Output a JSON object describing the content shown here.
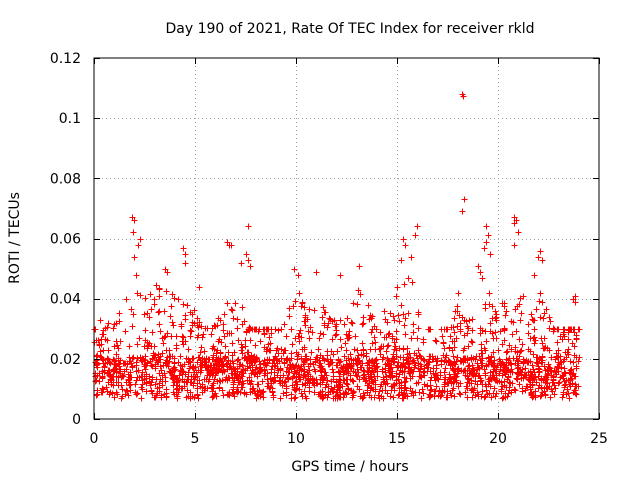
{
  "chart_data": {
    "type": "scatter",
    "title": "Day 190 of 2021, Rate Of TEC Index for receiver rkld",
    "xlabel": "GPS time / hours",
    "ylabel": "ROTI / TECUs",
    "xlim": [
      0,
      25
    ],
    "ylim": [
      0,
      0.12
    ],
    "x_ticks": [
      0,
      5,
      10,
      15,
      20,
      25
    ],
    "x_tick_labels": [
      "0",
      "5",
      "10",
      "15",
      "20",
      "25"
    ],
    "y_ticks": [
      0,
      0.02,
      0.04,
      0.06,
      0.08,
      0.1,
      0.12
    ],
    "y_tick_labels": [
      "0",
      "0.02",
      "0.04",
      "0.06",
      "0.08",
      "0.1",
      "0.12"
    ],
    "grid": true,
    "marker": "+",
    "color": "#ff0000",
    "series": [
      {
        "name": "ROTI",
        "x_range": [
          0,
          24
        ],
        "typical_range": [
          0.005,
          0.03
        ],
        "envelope": [
          {
            "x": 0.0,
            "y": 0.02
          },
          {
            "x": 0.5,
            "y": 0.03
          },
          {
            "x": 1.0,
            "y": 0.032
          },
          {
            "x": 1.5,
            "y": 0.039
          },
          {
            "x": 2.0,
            "y": 0.045
          },
          {
            "x": 2.5,
            "y": 0.043
          },
          {
            "x": 3.0,
            "y": 0.044
          },
          {
            "x": 3.5,
            "y": 0.05
          },
          {
            "x": 4.0,
            "y": 0.04
          },
          {
            "x": 4.5,
            "y": 0.044
          },
          {
            "x": 5.0,
            "y": 0.035
          },
          {
            "x": 5.5,
            "y": 0.03
          },
          {
            "x": 6.0,
            "y": 0.032
          },
          {
            "x": 6.5,
            "y": 0.04
          },
          {
            "x": 7.0,
            "y": 0.041
          },
          {
            "x": 7.5,
            "y": 0.035
          },
          {
            "x": 8.0,
            "y": 0.025
          },
          {
            "x": 8.5,
            "y": 0.022
          },
          {
            "x": 9.0,
            "y": 0.025
          },
          {
            "x": 9.5,
            "y": 0.033
          },
          {
            "x": 10.0,
            "y": 0.045
          },
          {
            "x": 10.5,
            "y": 0.04
          },
          {
            "x": 11.0,
            "y": 0.042
          },
          {
            "x": 11.5,
            "y": 0.035
          },
          {
            "x": 12.0,
            "y": 0.033
          },
          {
            "x": 12.5,
            "y": 0.04
          },
          {
            "x": 13.0,
            "y": 0.045
          },
          {
            "x": 13.5,
            "y": 0.04
          },
          {
            "x": 14.0,
            "y": 0.03
          },
          {
            "x": 14.5,
            "y": 0.038
          },
          {
            "x": 15.0,
            "y": 0.045
          },
          {
            "x": 15.5,
            "y": 0.052
          },
          {
            "x": 16.0,
            "y": 0.04
          },
          {
            "x": 16.5,
            "y": 0.03
          },
          {
            "x": 17.0,
            "y": 0.025
          },
          {
            "x": 17.5,
            "y": 0.03
          },
          {
            "x": 18.0,
            "y": 0.04
          },
          {
            "x": 18.5,
            "y": 0.032
          },
          {
            "x": 19.0,
            "y": 0.045
          },
          {
            "x": 19.5,
            "y": 0.05
          },
          {
            "x": 20.0,
            "y": 0.04
          },
          {
            "x": 20.5,
            "y": 0.038
          },
          {
            "x": 21.0,
            "y": 0.042
          },
          {
            "x": 21.5,
            "y": 0.04
          },
          {
            "x": 22.0,
            "y": 0.045
          },
          {
            "x": 22.5,
            "y": 0.035
          },
          {
            "x": 23.0,
            "y": 0.025
          },
          {
            "x": 23.5,
            "y": 0.03
          },
          {
            "x": 24.0,
            "y": 0.03
          }
        ],
        "peaks": [
          {
            "x": 0.3,
            "y": 0.033
          },
          {
            "x": 0.7,
            "y": 0.032
          },
          {
            "x": 1.9,
            "y": 0.067
          },
          {
            "x": 2.0,
            "y": 0.066
          },
          {
            "x": 1.95,
            "y": 0.062
          },
          {
            "x": 2.3,
            "y": 0.06
          },
          {
            "x": 2.2,
            "y": 0.058
          },
          {
            "x": 2.0,
            "y": 0.054
          },
          {
            "x": 2.1,
            "y": 0.048
          },
          {
            "x": 3.5,
            "y": 0.05
          },
          {
            "x": 3.6,
            "y": 0.049
          },
          {
            "x": 4.4,
            "y": 0.057
          },
          {
            "x": 4.5,
            "y": 0.055
          },
          {
            "x": 4.5,
            "y": 0.052
          },
          {
            "x": 5.2,
            "y": 0.044
          },
          {
            "x": 6.6,
            "y": 0.059
          },
          {
            "x": 6.7,
            "y": 0.058
          },
          {
            "x": 6.8,
            "y": 0.058
          },
          {
            "x": 7.6,
            "y": 0.064
          },
          {
            "x": 7.5,
            "y": 0.055
          },
          {
            "x": 7.6,
            "y": 0.053
          },
          {
            "x": 7.7,
            "y": 0.051
          },
          {
            "x": 7.3,
            "y": 0.052
          },
          {
            "x": 9.9,
            "y": 0.05
          },
          {
            "x": 10.1,
            "y": 0.048
          },
          {
            "x": 11.0,
            "y": 0.049
          },
          {
            "x": 12.2,
            "y": 0.048
          },
          {
            "x": 13.1,
            "y": 0.051
          },
          {
            "x": 15.3,
            "y": 0.06
          },
          {
            "x": 15.4,
            "y": 0.058
          },
          {
            "x": 16.0,
            "y": 0.064
          },
          {
            "x": 15.9,
            "y": 0.061
          },
          {
            "x": 15.7,
            "y": 0.054
          },
          {
            "x": 15.2,
            "y": 0.053
          },
          {
            "x": 18.2,
            "y": 0.108
          },
          {
            "x": 18.25,
            "y": 0.1075
          },
          {
            "x": 18.3,
            "y": 0.073
          },
          {
            "x": 18.2,
            "y": 0.069
          },
          {
            "x": 18.0,
            "y": 0.042
          },
          {
            "x": 19.4,
            "y": 0.064
          },
          {
            "x": 19.5,
            "y": 0.061
          },
          {
            "x": 19.4,
            "y": 0.059
          },
          {
            "x": 19.3,
            "y": 0.057
          },
          {
            "x": 19.6,
            "y": 0.055
          },
          {
            "x": 19.0,
            "y": 0.051
          },
          {
            "x": 19.1,
            "y": 0.049
          },
          {
            "x": 20.8,
            "y": 0.067
          },
          {
            "x": 20.9,
            "y": 0.066
          },
          {
            "x": 20.8,
            "y": 0.065
          },
          {
            "x": 21.0,
            "y": 0.062
          },
          {
            "x": 20.8,
            "y": 0.058
          },
          {
            "x": 22.1,
            "y": 0.056
          },
          {
            "x": 22.0,
            "y": 0.054
          },
          {
            "x": 22.2,
            "y": 0.053
          },
          {
            "x": 21.8,
            "y": 0.048
          },
          {
            "x": 23.8,
            "y": 0.041
          },
          {
            "x": 23.7,
            "y": 0.04
          },
          {
            "x": 23.8,
            "y": 0.039
          }
        ]
      }
    ]
  }
}
